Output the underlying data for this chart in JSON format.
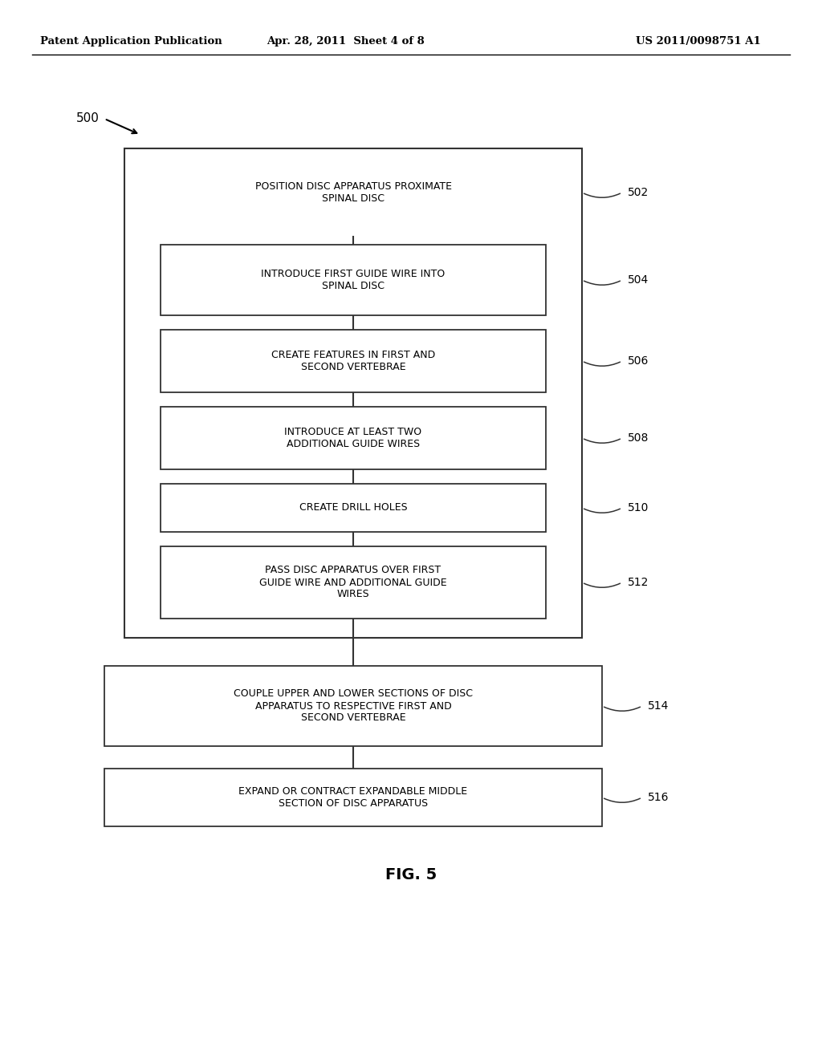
{
  "header_left": "Patent Application Publication",
  "header_mid": "Apr. 28, 2011  Sheet 4 of 8",
  "header_right": "US 2011/0098751 A1",
  "fig_label": "FIG. 5",
  "diagram_label": "500",
  "background_color": "#ffffff",
  "step_fontsize": 9.0,
  "ref_fontsize": 10.0,
  "header_fontsize": 9.5
}
